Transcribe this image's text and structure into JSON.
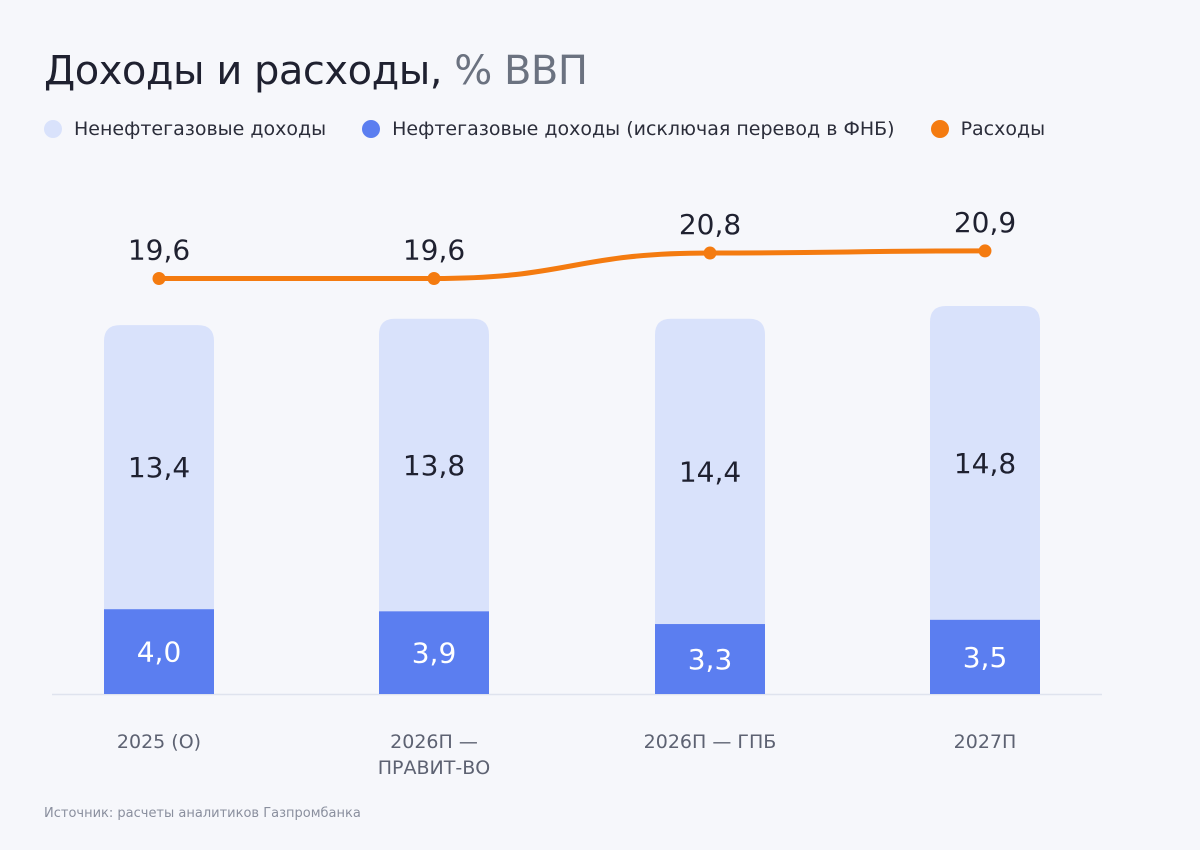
{
  "title": "Доходы и расходы,",
  "subtitle": "% ВВП",
  "legend": [
    {
      "label": "Ненефтегазовые доходы",
      "color": "#d9e2fb"
    },
    {
      "label": "Нефтегазовые доходы (исключая перевод в ФНБ)",
      "color": "#5b7ef0"
    },
    {
      "label": "Расходы",
      "color": "#f47b10"
    }
  ],
  "source": "Источник: расчеты аналитиков Газпромбанка",
  "chart_data": {
    "type": "bar",
    "stacked": true,
    "categories": [
      [
        "2025 (О)"
      ],
      [
        "2026П —",
        "ПРАВИТ-ВО"
      ],
      [
        "2026П — ГПБ"
      ],
      [
        "2027П"
      ]
    ],
    "series": [
      {
        "name": "Нефтегазовые доходы (исключая перевод в ФНБ)",
        "values": [
          4.0,
          3.9,
          3.3,
          3.5
        ],
        "labels": [
          "4,0",
          "3,9",
          "3,3",
          "3,5"
        ],
        "color": "#5b7ef0"
      },
      {
        "name": "Ненефтегазовые доходы",
        "values": [
          13.4,
          13.8,
          14.4,
          14.8
        ],
        "labels": [
          "13,4",
          "13,8",
          "14,4",
          "14,8"
        ],
        "color": "#d9e2fb"
      }
    ],
    "line": {
      "name": "Расходы",
      "values": [
        19.6,
        19.6,
        20.8,
        20.9
      ],
      "labels": [
        "19,6",
        "19,6",
        "20,8",
        "20,9"
      ],
      "color": "#f47b10"
    },
    "grid": false
  }
}
